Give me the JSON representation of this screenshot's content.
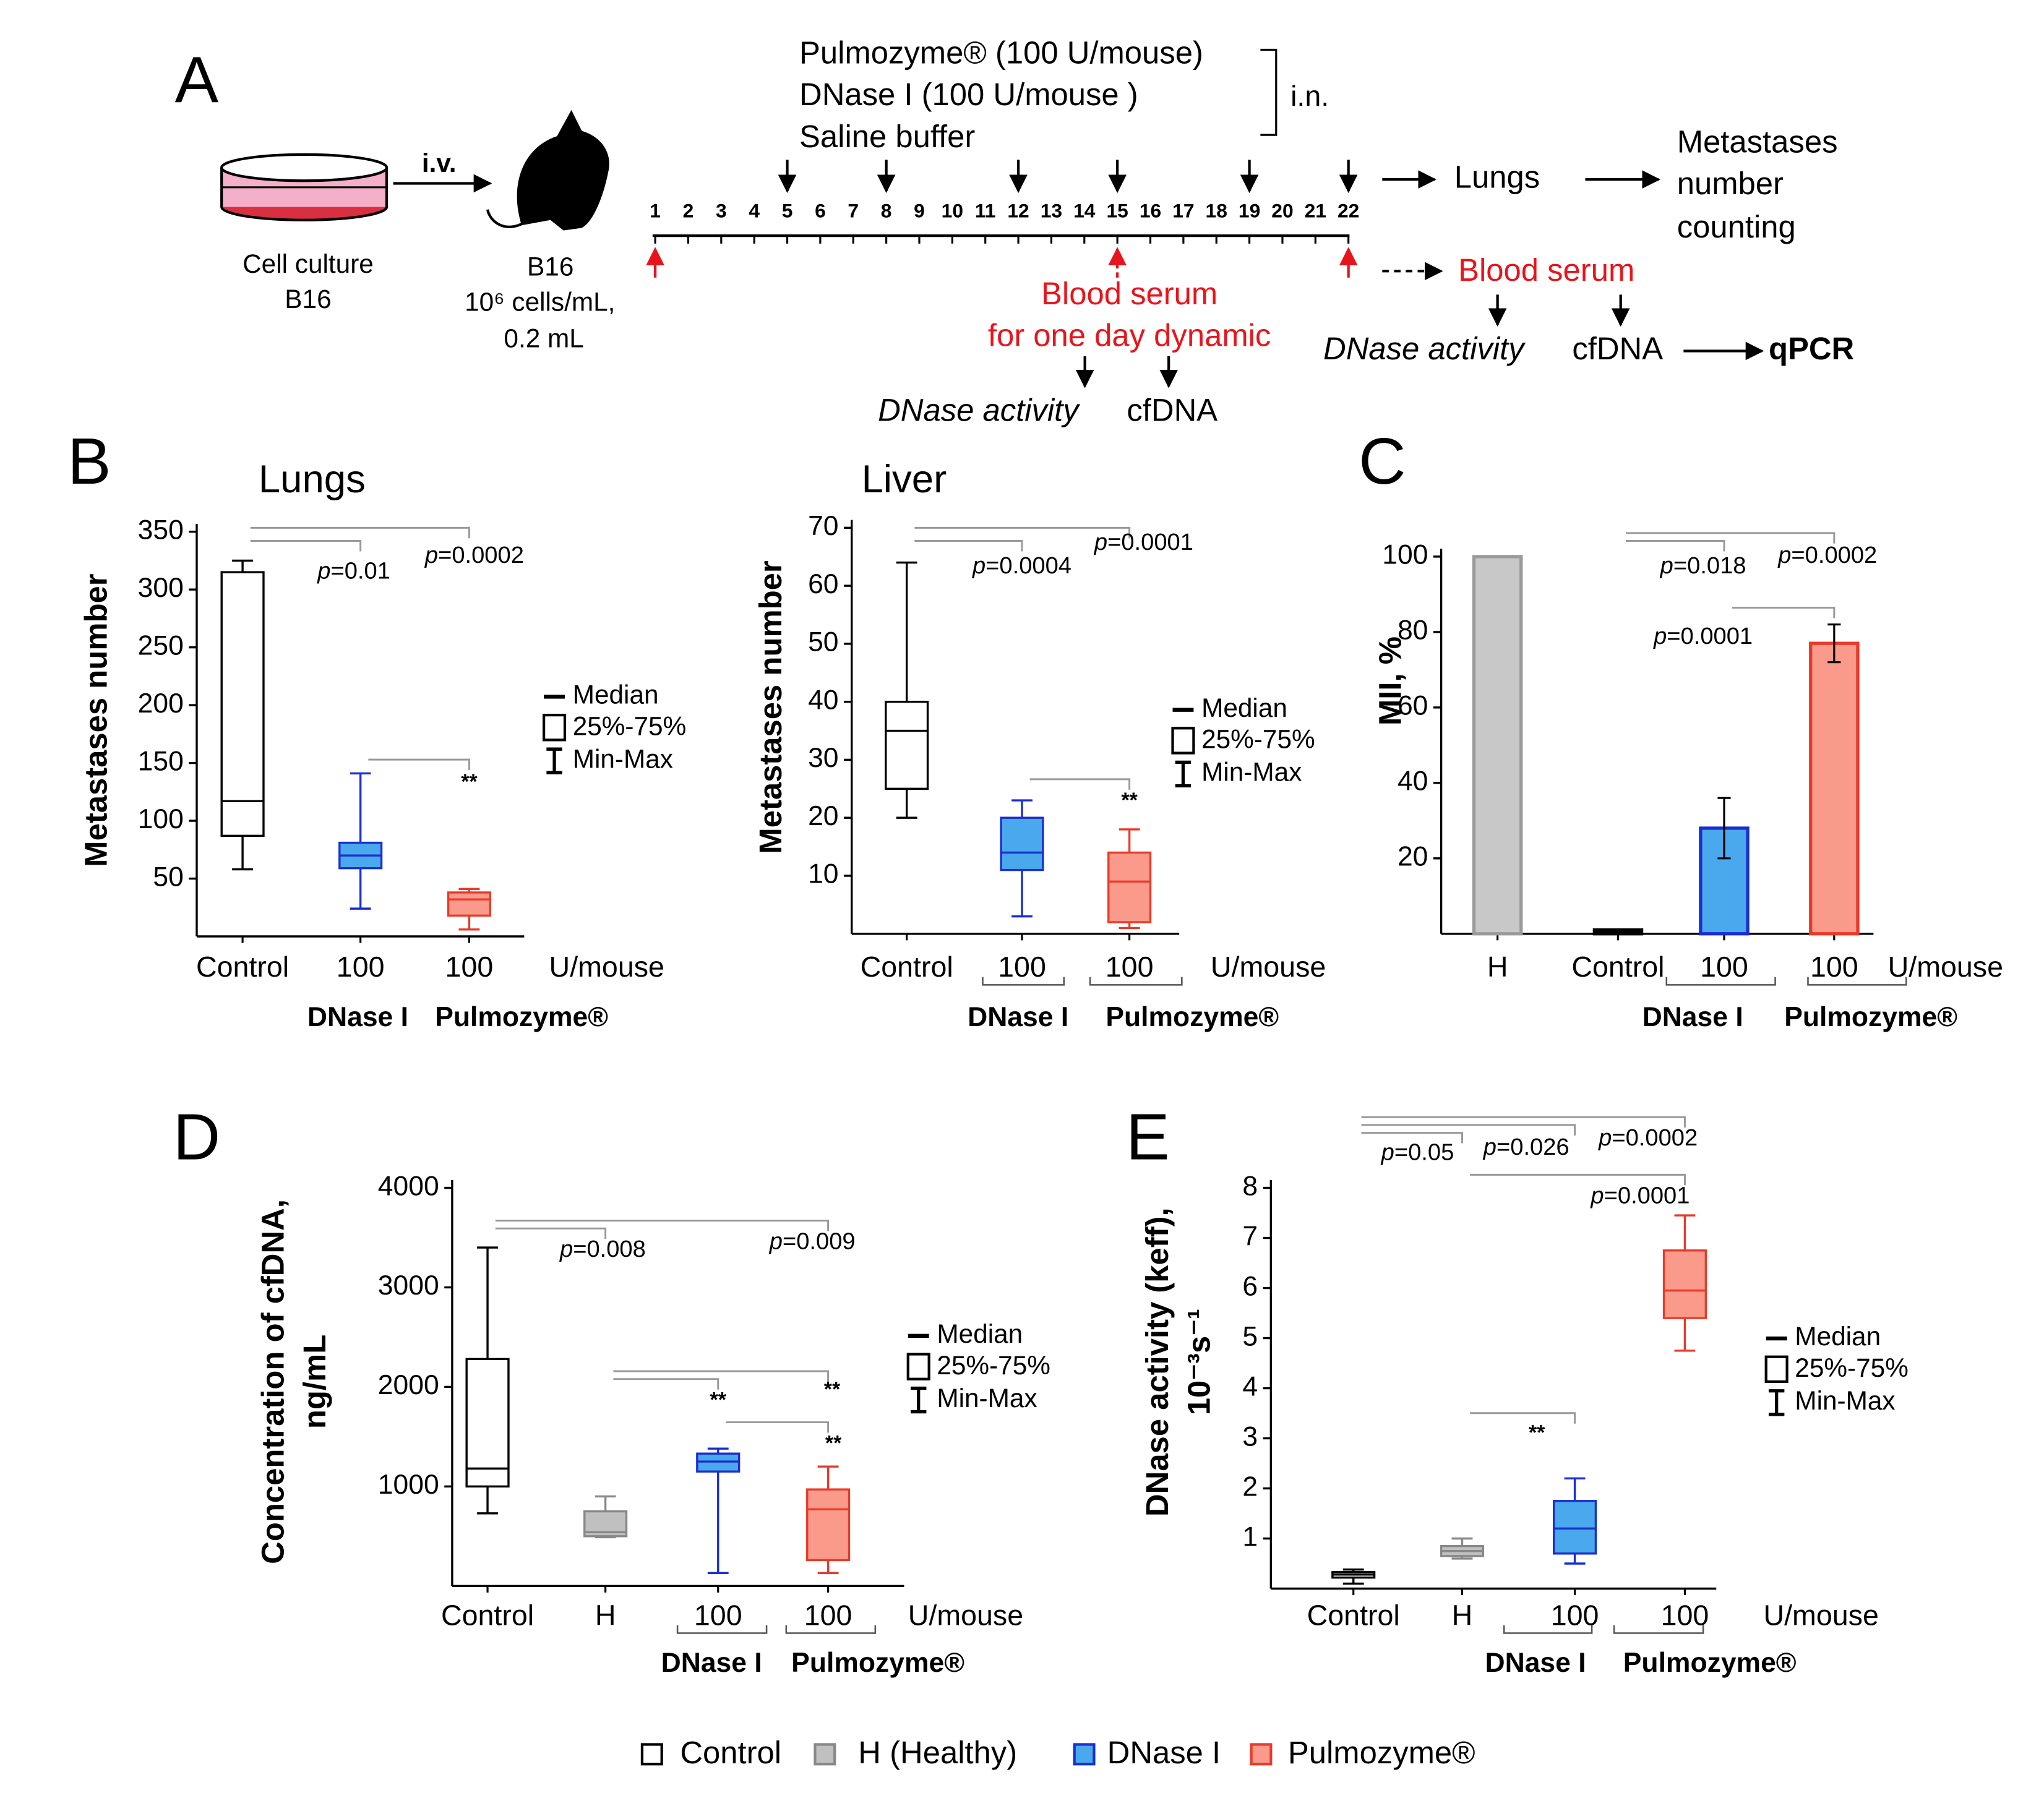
{
  "panels": [
    "A",
    "B",
    "C",
    "D",
    "E"
  ],
  "diagram": {
    "treatments": [
      "Pulmozyme® (100 U/mouse)",
      "DNase I (100 U/mouse )",
      "Saline buffer"
    ],
    "route_in": "i.n.",
    "route_iv": "i.v.",
    "cell_culture": [
      "Cell culture",
      "B16"
    ],
    "mouse": [
      "B16",
      "10⁶ cells/mL,",
      "0.2 mL"
    ],
    "days": [
      1,
      2,
      3,
      4,
      5,
      6,
      7,
      8,
      9,
      10,
      11,
      12,
      13,
      14,
      15,
      16,
      17,
      18,
      19,
      20,
      21,
      22
    ],
    "injection_days": [
      5,
      8,
      12,
      15,
      19,
      22
    ],
    "sampling_days": [
      1,
      15,
      22
    ],
    "serum_dynamic": [
      "Blood serum",
      "for one day dynamic"
    ],
    "assay_dynamic": [
      "DNase activity",
      "cfDNA"
    ],
    "organ": "Lungs",
    "outcome": [
      "Metastases",
      "number",
      "counting"
    ],
    "serum_final": "Blood serum",
    "assay_final": [
      "DNase activity",
      "cfDNA"
    ],
    "method": "qPCR"
  },
  "chart_data": [
    {
      "type": "box",
      "title": "Lungs",
      "y_label": [
        "Metastases number"
      ],
      "categories": [
        "Control",
        "100",
        "100"
      ],
      "unit": "U/mouse",
      "groups": [
        "DNase I",
        "Pulmozyme®"
      ],
      "ylim": [
        0,
        350
      ],
      "yticks": [
        50,
        100,
        150,
        200,
        250,
        300,
        350
      ],
      "box_legend": [
        "Median",
        "25%-75%",
        "Min-Max"
      ],
      "boxes": [
        {
          "min": 58,
          "q1": 87,
          "median": 117,
          "q3": 315,
          "max": 325,
          "fill": "#ffffff",
          "stroke": "#000000"
        },
        {
          "min": 24,
          "q1": 59,
          "median": 70,
          "q3": 81,
          "max": 141,
          "fill": "#4aa8ec",
          "stroke": "#1a2fd0"
        },
        {
          "min": 6,
          "q1": 18,
          "median": 32,
          "q3": 38,
          "max": 41,
          "fill": "#fa9a8a",
          "stroke": "#e83a2a"
        }
      ],
      "comparisons": [
        {
          "from": 0,
          "to": 1,
          "label": "p=0.01"
        },
        {
          "from": 0,
          "to": 2,
          "label": "p=0.0002"
        },
        {
          "from": 1,
          "to": 2,
          "label": "**"
        }
      ]
    },
    {
      "type": "box",
      "title": "Liver",
      "y_label": [
        "Metastases number"
      ],
      "categories": [
        "Control",
        "100",
        "100"
      ],
      "unit": "U/mouse",
      "groups": [
        "DNase I",
        "Pulmozyme®"
      ],
      "ylim": [
        0,
        70
      ],
      "yticks": [
        10,
        20,
        30,
        40,
        50,
        60,
        70
      ],
      "box_legend": [
        "Median",
        "25%-75%",
        "Min-Max"
      ],
      "boxes": [
        {
          "min": 20,
          "q1": 25,
          "median": 35,
          "q3": 40,
          "max": 64,
          "fill": "#ffffff",
          "stroke": "#000000"
        },
        {
          "min": 3,
          "q1": 11,
          "median": 14,
          "q3": 20,
          "max": 23,
          "fill": "#4aa8ec",
          "stroke": "#1a2fd0"
        },
        {
          "min": 1,
          "q1": 2,
          "median": 9,
          "q3": 14,
          "max": 18,
          "fill": "#fa9a8a",
          "stroke": "#e83a2a"
        }
      ],
      "comparisons": [
        {
          "from": 0,
          "to": 1,
          "label": "p=0.0004"
        },
        {
          "from": 0,
          "to": 2,
          "label": "p=0.0001"
        },
        {
          "from": 1,
          "to": 2,
          "label": "**"
        }
      ]
    },
    {
      "type": "bar",
      "y_label": [
        "MII, %"
      ],
      "categories": [
        "H",
        "Control",
        "100",
        "100"
      ],
      "unit": "U/mouse",
      "groups": [
        "DNase I",
        "Pulmozyme®"
      ],
      "ylim": [
        0,
        100
      ],
      "yticks": [
        20,
        40,
        60,
        80,
        100
      ],
      "values": [
        100,
        1,
        28,
        77
      ],
      "errors": [
        null,
        null,
        8,
        5
      ],
      "fills": [
        "#c8c8c8",
        "#000000",
        "#4aa8ec",
        "#fa9a8a"
      ],
      "strokes": [
        "#9a9a9a",
        "#000000",
        "#1a2fd0",
        "#e83a2a"
      ],
      "comparisons": [
        {
          "from": 1,
          "to": 2,
          "label": "p=0.018"
        },
        {
          "from": 1,
          "to": 3,
          "label": "p=0.0002"
        },
        {
          "from": 2,
          "to": 3,
          "label": "p=0.0001"
        }
      ]
    },
    {
      "type": "box",
      "y_label": [
        "Concentration of cfDNA,",
        "ng/mL"
      ],
      "categories": [
        "Control",
        "H",
        "100",
        "100"
      ],
      "unit": "U/mouse",
      "groups": [
        "DNase I",
        "Pulmozyme®"
      ],
      "ylim": [
        0,
        4000
      ],
      "yticks": [
        1000,
        2000,
        3000,
        4000
      ],
      "box_legend": [
        "Median",
        "25%-75%",
        "Min-Max"
      ],
      "boxes": [
        {
          "min": 730,
          "q1": 1000,
          "median": 1180,
          "q3": 2280,
          "max": 3400,
          "fill": "#ffffff",
          "stroke": "#000000"
        },
        {
          "min": 490,
          "q1": 500,
          "median": 540,
          "q3": 750,
          "max": 900,
          "fill": "#c0c0c0",
          "stroke": "#888888"
        },
        {
          "min": 130,
          "q1": 1150,
          "median": 1250,
          "q3": 1330,
          "max": 1380,
          "fill": "#4aa8ec",
          "stroke": "#1a2fd0"
        },
        {
          "min": 130,
          "q1": 260,
          "median": 770,
          "q3": 970,
          "max": 1200,
          "fill": "#fa9a8a",
          "stroke": "#e83a2a"
        }
      ],
      "comparisons": [
        {
          "from": 0,
          "to": 1,
          "label": "p=0.008"
        },
        {
          "from": 0,
          "to": 3,
          "label": "p=0.009"
        },
        {
          "from": 1,
          "to": 2,
          "label": "**"
        },
        {
          "from": 1,
          "to": 3,
          "label": "**"
        },
        {
          "from": 2,
          "to": 3,
          "label": "**"
        }
      ]
    },
    {
      "type": "box",
      "y_label": [
        "DNase activity (keff),",
        "10⁻³s⁻¹"
      ],
      "categories": [
        "Control",
        "H",
        "100",
        "100"
      ],
      "unit": "U/mouse",
      "groups": [
        "DNase I",
        "Pulmozyme®"
      ],
      "ylim": [
        0,
        8
      ],
      "yticks": [
        1,
        2,
        3,
        4,
        5,
        6,
        7,
        8
      ],
      "box_legend": [
        "Median",
        "25%-75%",
        "Min-Max"
      ],
      "boxes": [
        {
          "min": 0.1,
          "q1": 0.22,
          "median": 0.28,
          "q3": 0.33,
          "max": 0.38,
          "fill": "#ffffff",
          "stroke": "#000000"
        },
        {
          "min": 0.6,
          "q1": 0.65,
          "median": 0.75,
          "q3": 0.85,
          "max": 1.0,
          "fill": "#c0c0c0",
          "stroke": "#888888"
        },
        {
          "min": 0.5,
          "q1": 0.7,
          "median": 1.2,
          "q3": 1.75,
          "max": 2.2,
          "fill": "#4aa8ec",
          "stroke": "#1a2fd0"
        },
        {
          "min": 4.75,
          "q1": 5.4,
          "median": 5.95,
          "q3": 6.75,
          "max": 7.45,
          "fill": "#fa9a8a",
          "stroke": "#e83a2a"
        }
      ],
      "comparisons": [
        {
          "from": 0,
          "to": 1,
          "label": "p=0.05"
        },
        {
          "from": 0,
          "to": 2,
          "label": "p=0.026"
        },
        {
          "from": 0,
          "to": 3,
          "label": "p=0.0002"
        },
        {
          "from": 1,
          "to": 3,
          "label": "p=0.0001"
        },
        {
          "from": 1,
          "to": 2,
          "label": "**"
        }
      ]
    }
  ],
  "legend": [
    {
      "name": "Control",
      "fill": "#ffffff",
      "stroke": "#000000"
    },
    {
      "name": "H (Healthy)",
      "fill": "#c0c0c0",
      "stroke": "#888888"
    },
    {
      "name": "DNase I",
      "fill": "#4aa8ec",
      "stroke": "#1a2fd0"
    },
    {
      "name": "Pulmozyme®",
      "fill": "#fa9a8a",
      "stroke": "#e83a2a"
    }
  ]
}
